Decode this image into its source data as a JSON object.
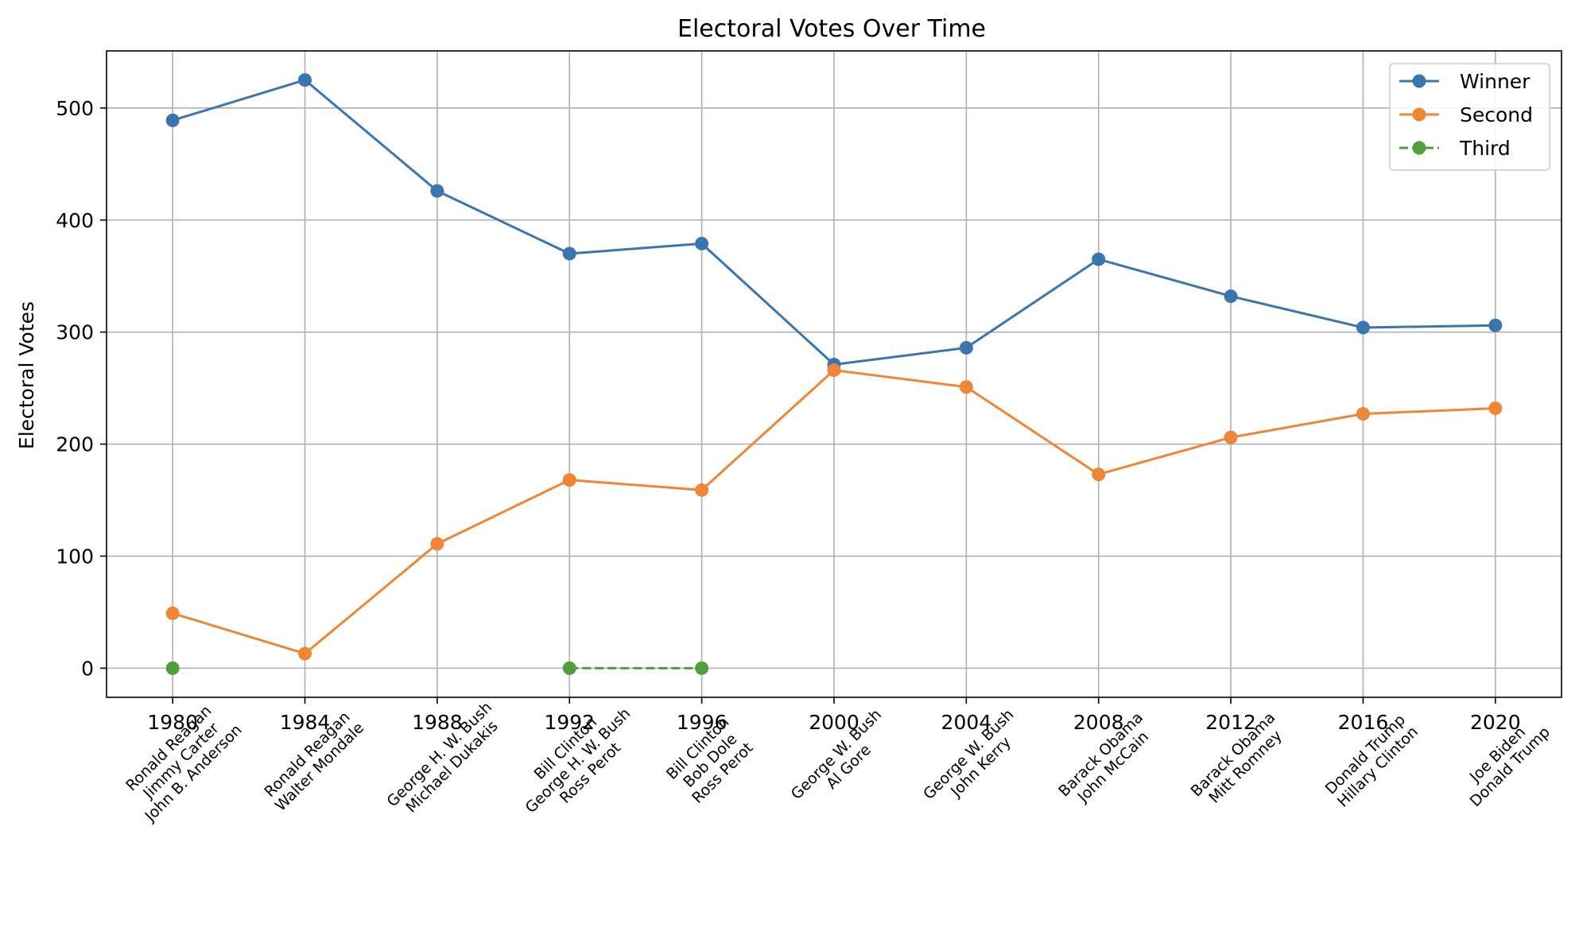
{
  "chart_data": {
    "type": "line",
    "title": "Electoral Votes Over Time",
    "xlabel": "",
    "ylabel": "Electoral Votes",
    "x": [
      1980,
      1984,
      1988,
      1992,
      1996,
      2000,
      2004,
      2008,
      2012,
      2016,
      2020
    ],
    "xlim": [
      1978,
      2022
    ],
    "ylim": [
      -26,
      551
    ],
    "yticks": [
      0,
      100,
      200,
      300,
      400,
      500
    ],
    "grid": true,
    "legend_position": "top-right",
    "candidate_labels": [
      [
        "Ronald Reagan",
        "Jimmy Carter",
        "John B. Anderson"
      ],
      [
        "Ronald Reagan",
        "Walter Mondale"
      ],
      [
        "George H. W. Bush",
        "Michael Dukakis"
      ],
      [
        "Bill Clinton",
        "George H. W. Bush",
        "Ross Perot"
      ],
      [
        "Bill Clinton",
        "Bob Dole",
        "Ross Perot"
      ],
      [
        "George W. Bush",
        "Al Gore"
      ],
      [
        "George W. Bush",
        "John Kerry"
      ],
      [
        "Barack Obama",
        "John McCain"
      ],
      [
        "Barack Obama",
        "Mitt Romney"
      ],
      [
        "Donald Trump",
        "Hillary Clinton"
      ],
      [
        "Joe Biden",
        "Donald Trump"
      ]
    ],
    "series": [
      {
        "name": "Winner",
        "color": "#3a75b0",
        "dashed": false,
        "values": [
          489,
          525,
          426,
          370,
          379,
          271,
          286,
          365,
          332,
          304,
          306
        ]
      },
      {
        "name": "Second",
        "color": "#ef8636",
        "dashed": false,
        "values": [
          49,
          13,
          111,
          168,
          159,
          266,
          251,
          173,
          206,
          227,
          232
        ]
      },
      {
        "name": "Third",
        "color": "#519e3e",
        "dashed": true,
        "values": [
          0,
          null,
          null,
          0,
          0,
          null,
          null,
          null,
          null,
          null,
          null
        ]
      }
    ]
  }
}
